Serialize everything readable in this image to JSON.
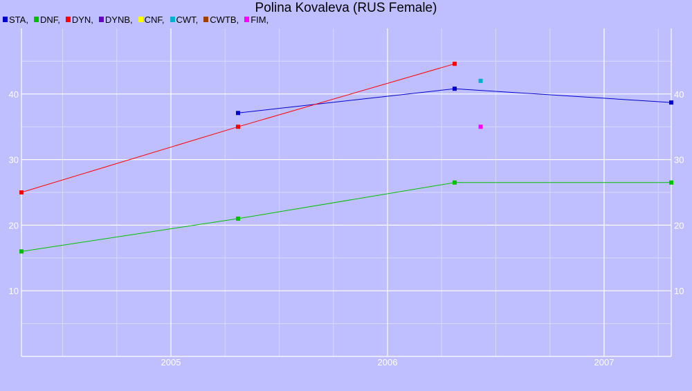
{
  "chart_data": {
    "type": "line",
    "title": "Polina Kovaleva (RUS Female)",
    "xlabel": "",
    "ylabel": "",
    "xlim": [
      2004.31,
      2007.31
    ],
    "ylim": [
      0,
      50
    ],
    "x_ticks": [
      {
        "value": 2005,
        "label": "2005"
      },
      {
        "value": 2006,
        "label": "2006"
      },
      {
        "value": 2007,
        "label": "2007"
      }
    ],
    "y_ticks": [
      {
        "value": 10,
        "label": "10"
      },
      {
        "value": 20,
        "label": "20"
      },
      {
        "value": 30,
        "label": "30"
      },
      {
        "value": 40,
        "label": "40"
      }
    ],
    "grid": true,
    "legend_position": "top-left",
    "legend": [
      {
        "label": "STA,",
        "color": "#0000cc"
      },
      {
        "label": "DNF,",
        "color": "#00c000"
      },
      {
        "label": "DYN,",
        "color": "#ff0000"
      },
      {
        "label": "DYNB,",
        "color": "#6600cc"
      },
      {
        "label": "CNF,",
        "color": "#ffff00"
      },
      {
        "label": "CWT,",
        "color": "#00b0d0"
      },
      {
        "label": "CWTB,",
        "color": "#a04000"
      },
      {
        "label": "FIM,",
        "color": "#ff00ff"
      }
    ],
    "series": [
      {
        "key": "sta",
        "color": "#0000cc",
        "line": true,
        "points": [
          [
            2005.31,
            37.1
          ],
          [
            2006.31,
            40.8
          ],
          [
            2007.31,
            38.7
          ]
        ]
      },
      {
        "key": "dnf",
        "color": "#00c000",
        "line": true,
        "points": [
          [
            2004.31,
            16
          ],
          [
            2005.31,
            21
          ],
          [
            2006.31,
            26.5
          ],
          [
            2007.31,
            26.5
          ]
        ]
      },
      {
        "key": "dyn",
        "color": "#ff0000",
        "line": true,
        "points": [
          [
            2004.31,
            25
          ],
          [
            2005.31,
            35
          ],
          [
            2006.31,
            44.6
          ]
        ]
      },
      {
        "key": "cwt",
        "color": "#00b0d0",
        "line": false,
        "points": [
          [
            2006.43,
            42
          ]
        ]
      },
      {
        "key": "fim",
        "color": "#ff00ff",
        "line": false,
        "points": [
          [
            2006.43,
            35
          ]
        ]
      }
    ]
  }
}
